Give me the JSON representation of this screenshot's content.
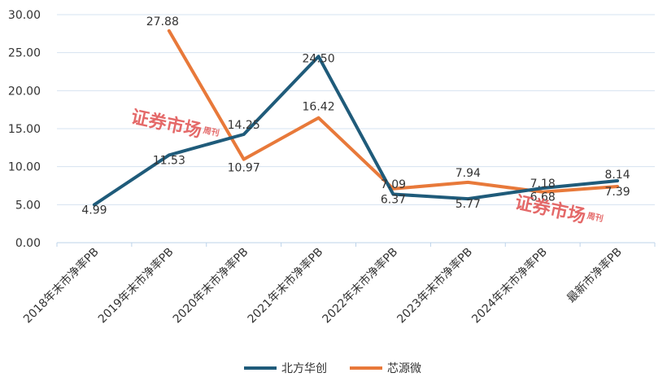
{
  "chart_data": {
    "type": "line",
    "categories": [
      "2018年末市净率PB",
      "2019年末市净率PB",
      "2020年末市净率PB",
      "2021年末市净率PB",
      "2022年末市净率PB",
      "2023年末市净率PB",
      "2024年末市净率PB",
      "最新市净率PB"
    ],
    "ylim": [
      0,
      30
    ],
    "yticks": [
      "0.00",
      "5.00",
      "10.00",
      "15.00",
      "20.00",
      "25.00",
      "30.00"
    ],
    "grid": true,
    "legend": "bottom",
    "series": [
      {
        "name": "北方华创",
        "color": "#1f5b7a",
        "values": [
          4.99,
          11.53,
          14.25,
          24.5,
          6.37,
          5.77,
          7.18,
          8.14
        ],
        "labels": [
          "4.99",
          "11.53",
          "14.25",
          "24.50",
          "6.37",
          "5.77",
          "7.18",
          "8.14"
        ]
      },
      {
        "name": "芯源微",
        "color": "#e8793a",
        "values": [
          null,
          27.88,
          10.97,
          16.42,
          7.09,
          7.94,
          6.68,
          7.39
        ],
        "labels": [
          "",
          "27.88",
          "10.97",
          "16.42",
          "7.09",
          "7.94",
          "6.68",
          "7.39"
        ]
      }
    ]
  },
  "watermark": {
    "title": "证券市场",
    "sub": "周刊"
  }
}
